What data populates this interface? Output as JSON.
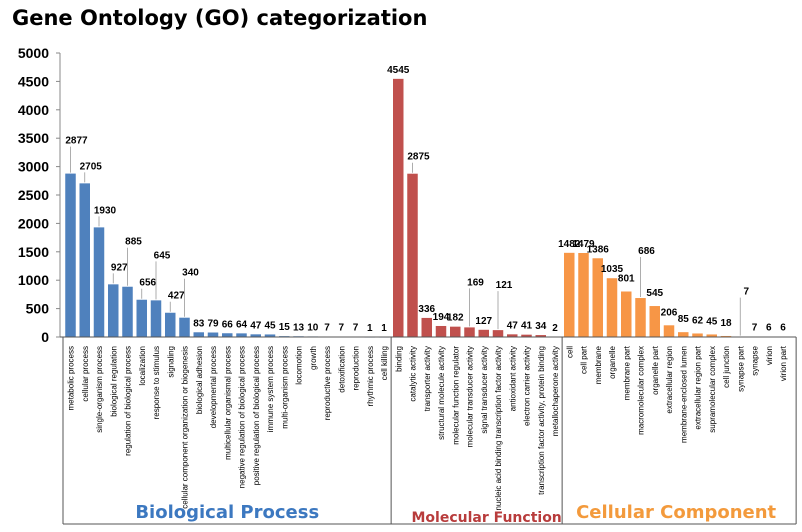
{
  "chart_data": {
    "type": "bar",
    "title": "Gene Ontology (GO) categorization",
    "xlabel": "",
    "ylabel": "",
    "ylim": [
      0,
      5000
    ],
    "yticks": [
      0,
      500,
      1000,
      1500,
      2000,
      2500,
      3000,
      3500,
      4000,
      4500,
      5000
    ],
    "grid": false,
    "groups": [
      {
        "name": "Biological Process",
        "color": "#4F81BD",
        "label_color": "#3C78C0",
        "categories": [
          "metabolic process",
          "cellular process",
          "single-organism process",
          "biological regulation",
          "regulation of biological process",
          "localization",
          "response to stimulus",
          "signaling",
          "cellular component organization or biogenesis",
          "biological adhesion",
          "developmental process",
          "multicellular organismal process",
          "negative regulation of biological process",
          "positive regulation of biological process",
          "immune system process",
          "multi-organism process",
          "locomotion",
          "growth",
          "reproductive process",
          "detoxification",
          "reproduction",
          "rhythmic process",
          "cell killing"
        ],
        "values": [
          2877,
          2705,
          1930,
          927,
          885,
          656,
          645,
          427,
          340,
          83,
          79,
          66,
          64,
          47,
          45,
          15,
          13,
          10,
          7,
          7,
          7,
          1,
          1
        ]
      },
      {
        "name": "Molecular Function",
        "color": "#C0504D",
        "label_color": "#B83C3C",
        "categories": [
          "binding",
          "catalytic activity",
          "transporter activity",
          "structural molecule activity",
          "molecular function regulator",
          "molecular transducer activity",
          "signal transducer activity",
          "nucleic acid binding transcription factor activity",
          "antioxidant activity",
          "electron carrier activity",
          "transcription factor activity, protein binding",
          "metallochaperone activity"
        ],
        "values": [
          4545,
          2875,
          336,
          194,
          182,
          169,
          127,
          121,
          47,
          41,
          34,
          2
        ]
      },
      {
        "name": "Cellular Component",
        "color": "#F79646",
        "label_color": "#F39A3C",
        "categories": [
          "cell",
          "cell part",
          "membrane",
          "organelle",
          "membrane part",
          "macromolecular complex",
          "organelle part",
          "extracellular region",
          "membrane-enclosed lumen",
          "extracellular region part",
          "supramolecular complex",
          "cell junction",
          "synapse part",
          "synapse",
          "virion",
          "virion part"
        ],
        "values": [
          1482,
          1479,
          1386,
          1035,
          801,
          686,
          545,
          206,
          85,
          62,
          45,
          18,
          7,
          7,
          6,
          6
        ]
      }
    ]
  }
}
